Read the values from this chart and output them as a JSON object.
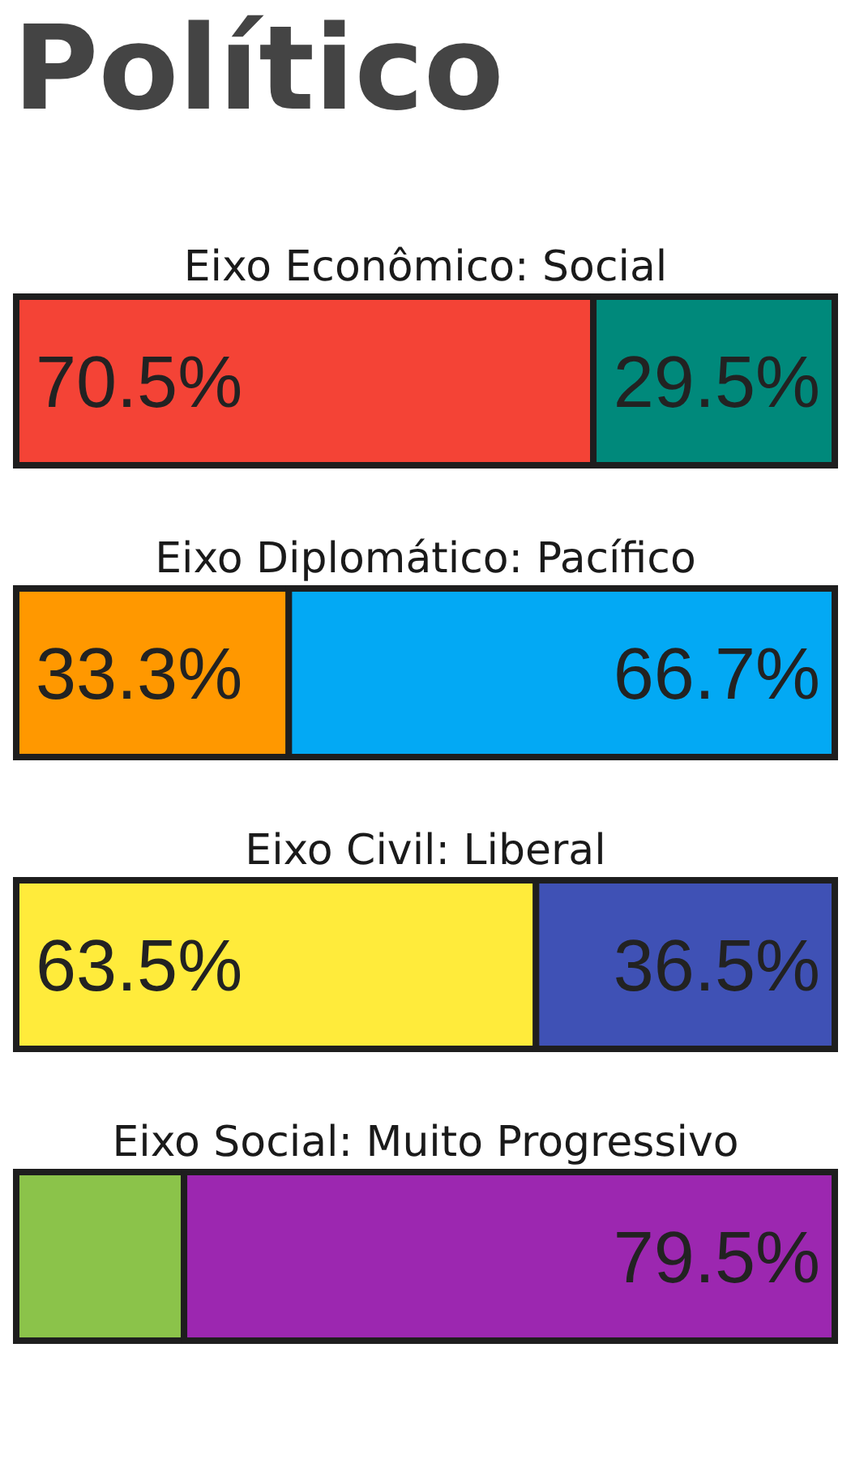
{
  "chart_data": {
    "type": "bar",
    "title": "Político",
    "orientation": "horizontal",
    "stacked": true,
    "tick_labels": "y",
    "categories": [
      "Eixo Econômico: Social",
      "Eixo Diplomático: Pacífico",
      "Eixo Civil: Liberal",
      "Eixo Social: Muito Progressivo"
    ],
    "xlim": [
      0,
      100
    ],
    "series": [
      {
        "values": [
          70.5,
          33.3,
          63.5,
          20.5
        ],
        "colors": [
          "#f44336",
          "#ff9800",
          "#ffeb3b",
          "#8bc34a"
        ],
        "value_labels": [
          "70.5%",
          "33.3%",
          "63.5%",
          null
        ]
      },
      {
        "values": [
          29.5,
          66.7,
          36.5,
          79.5
        ],
        "colors": [
          "#00897b",
          "#03a9f4",
          "#3f51b5",
          "#9c27b0"
        ],
        "value_labels": [
          "29.5%",
          "66.7%",
          "36.5%",
          "79.5%"
        ]
      }
    ]
  }
}
